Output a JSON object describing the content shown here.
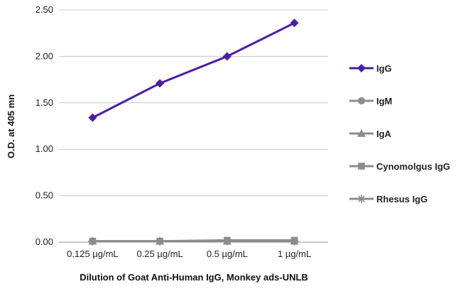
{
  "chart_data": {
    "type": "line",
    "title": "",
    "xlabel": "Dilution of Goat Anti-Human IgG, Monkey ads-UNLB",
    "ylabel": "O.D. at 405 mn",
    "ylim": [
      0,
      2.5
    ],
    "yticks": [
      "0.00",
      "0.50",
      "1.00",
      "1.50",
      "2.00",
      "2.50"
    ],
    "categories": [
      "0.125 µg/mL",
      "0.25 µg/mL",
      "0.5 µg/mL",
      "1 µg/mL"
    ],
    "grid": "horizontal",
    "legend_position": "right",
    "series": [
      {
        "name": "IgG",
        "values": [
          1.34,
          1.71,
          2.0,
          2.36
        ],
        "color": "#4b1ea3",
        "marker": "diamond"
      },
      {
        "name": "IgM",
        "values": [
          0.01,
          0.01,
          0.01,
          0.01
        ],
        "color": "#8c8c8c",
        "marker": "circle"
      },
      {
        "name": "IgA",
        "values": [
          0.01,
          0.01,
          0.01,
          0.01
        ],
        "color": "#8c8c8c",
        "marker": "triangle"
      },
      {
        "name": "Cynomolgus IgG",
        "values": [
          0.01,
          0.01,
          0.02,
          0.02
        ],
        "color": "#8c8c8c",
        "marker": "square"
      },
      {
        "name": "Rhesus IgG",
        "values": [
          0.01,
          0.01,
          0.01,
          0.01
        ],
        "color": "#8c8c8c",
        "marker": "star"
      }
    ]
  }
}
